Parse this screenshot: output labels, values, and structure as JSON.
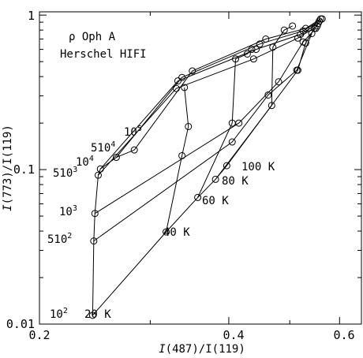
{
  "chart_data": {
    "type": "line",
    "xlabel_italic": "I",
    "xlabel_rest": "(487)/I(119)",
    "ylabel_italic": "I",
    "ylabel_rest": "(773)/I(119)",
    "x_scale": "log",
    "y_scale": "log",
    "xlim": [
      0.2,
      0.65
    ],
    "ylim": [
      0.01,
      1.05
    ],
    "x_ticks": [
      {
        "value": 0.2,
        "label": "0.2"
      },
      {
        "value": 0.4,
        "label": "0.4"
      },
      {
        "value": 0.6,
        "label": "0.6"
      }
    ],
    "y_ticks": [
      {
        "value": 0.01,
        "label": "0.01"
      },
      {
        "value": 0.1,
        "label": "0.1"
      },
      {
        "value": 1,
        "label": "1"
      }
    ],
    "annotations": [
      {
        "key": "source",
        "text": "ρ Oph A"
      },
      {
        "key": "instrument",
        "text": "Herschel HIFI"
      }
    ],
    "temperatures": [
      {
        "label": "20 K",
        "x": 0.243,
        "y": 0.0114
      },
      {
        "label": "40 K",
        "x": 0.318,
        "y": 0.0395
      },
      {
        "label": "60 K",
        "x": 0.357,
        "y": 0.066
      },
      {
        "label": "80 K",
        "x": 0.381,
        "y": 0.0865
      },
      {
        "label": "100 K",
        "x": 0.397,
        "y": 0.106
      }
    ],
    "density_labels": [
      {
        "mant": "10",
        "exp": "2"
      },
      {
        "mant": "510",
        "exp": "2"
      },
      {
        "mant": "10",
        "exp": "3"
      },
      {
        "mant": "510",
        "exp": "3"
      },
      {
        "mant": "10",
        "exp": "4"
      },
      {
        "mant": "510",
        "exp": "4"
      },
      {
        "mant": "10",
        "exp": "5"
      }
    ],
    "density_curves": [
      {
        "points": [
          [
            0.243,
            0.0114
          ],
          [
            0.318,
            0.0395
          ],
          [
            0.357,
            0.066
          ],
          [
            0.381,
            0.0865
          ],
          [
            0.397,
            0.106
          ]
        ]
      },
      {
        "points": [
          [
            0.244,
            0.0345
          ],
          [
            0.405,
            0.151
          ],
          [
            0.462,
            0.304
          ],
          [
            0.513,
            0.44
          ],
          [
            0.542,
            0.76
          ]
        ]
      },
      {
        "points": [
          [
            0.245,
            0.052
          ],
          [
            0.415,
            0.2
          ],
          [
            0.48,
            0.37
          ],
          [
            0.525,
            0.67
          ],
          [
            0.55,
            0.82
          ]
        ]
      },
      {
        "points": [
          [
            0.248,
            0.092
          ],
          [
            0.33,
            0.335
          ],
          [
            0.438,
            0.52
          ],
          [
            0.515,
            0.71
          ],
          [
            0.553,
            0.85
          ]
        ]
      },
      {
        "points": [
          [
            0.25,
            0.101
          ],
          [
            0.332,
            0.375
          ],
          [
            0.442,
            0.6
          ],
          [
            0.52,
            0.75
          ],
          [
            0.555,
            0.885
          ]
        ]
      },
      {
        "points": [
          [
            0.265,
            0.12
          ],
          [
            0.337,
            0.395
          ],
          [
            0.448,
            0.65
          ],
          [
            0.525,
            0.79
          ],
          [
            0.557,
            0.915
          ]
        ]
      },
      {
        "points": [
          [
            0.283,
            0.134
          ],
          [
            0.35,
            0.435
          ],
          [
            0.458,
            0.7
          ],
          [
            0.53,
            0.82
          ],
          [
            0.56,
            0.945
          ]
        ]
      }
    ],
    "temperature_curves": [
      {
        "points": [
          [
            0.243,
            0.0114
          ],
          [
            0.244,
            0.0345
          ],
          [
            0.245,
            0.052
          ],
          [
            0.248,
            0.092
          ],
          [
            0.25,
            0.101
          ],
          [
            0.265,
            0.12
          ],
          [
            0.283,
            0.134
          ]
        ]
      },
      {
        "points": [
          [
            0.318,
            0.0395
          ],
          [
            0.337,
            0.123
          ],
          [
            0.345,
            0.19
          ],
          [
            0.34,
            0.34
          ]
        ]
      },
      {
        "points": [
          [
            0.357,
            0.066
          ],
          [
            0.405,
            0.2
          ],
          [
            0.41,
            0.52
          ],
          [
            0.428,
            0.56
          ],
          [
            0.435,
            0.6
          ]
        ]
      },
      {
        "points": [
          [
            0.381,
            0.0865
          ],
          [
            0.468,
            0.26
          ],
          [
            0.47,
            0.62
          ],
          [
            0.49,
            0.8
          ],
          [
            0.505,
            0.85
          ]
        ]
      },
      {
        "points": [
          [
            0.397,
            0.106
          ],
          [
            0.515,
            0.44
          ],
          [
            0.53,
            0.66
          ],
          [
            0.547,
            0.82
          ],
          [
            0.563,
            0.945
          ]
        ]
      }
    ]
  }
}
